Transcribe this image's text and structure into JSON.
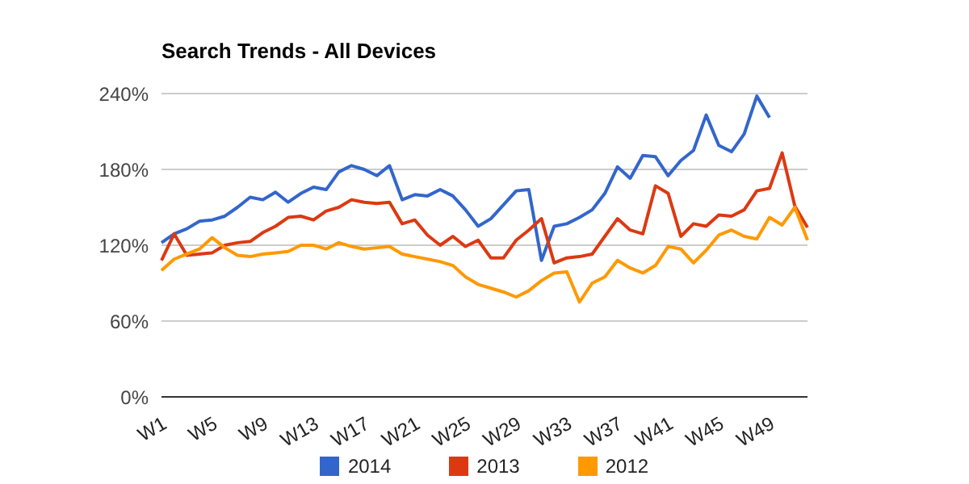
{
  "chart_data": {
    "type": "line",
    "title": "Search Trends - All Devices",
    "categories": [
      "W1",
      null,
      null,
      null,
      "W5",
      null,
      null,
      null,
      "W9",
      null,
      null,
      null,
      "W13",
      null,
      null,
      null,
      "W17",
      null,
      null,
      null,
      "W21",
      null,
      null,
      null,
      "W25",
      null,
      null,
      null,
      "W29",
      null,
      null,
      null,
      "W33",
      null,
      null,
      null,
      "W37",
      null,
      null,
      null,
      "W41",
      null,
      null,
      null,
      "W45",
      null,
      null,
      null,
      "W49",
      null,
      null,
      null
    ],
    "series": [
      {
        "name": "2014",
        "color": "#3366cc",
        "values": [
          122,
          129,
          133,
          139,
          140,
          143,
          150,
          158,
          156,
          162,
          154,
          161,
          166,
          164,
          178,
          183,
          180,
          175,
          183,
          156,
          160,
          159,
          164,
          159,
          148,
          135,
          141,
          152,
          163,
          164,
          108,
          135,
          137,
          142,
          148,
          161,
          182,
          173,
          191,
          190,
          175,
          187,
          195,
          223,
          199,
          194,
          208,
          238,
          221,
          null,
          null,
          null
        ]
      },
      {
        "name": "2013",
        "color": "#dc3912",
        "values": [
          108,
          129,
          112,
          113,
          114,
          120,
          122,
          123,
          130,
          135,
          142,
          143,
          140,
          147,
          150,
          156,
          154,
          153,
          154,
          137,
          140,
          128,
          120,
          127,
          119,
          124,
          110,
          110,
          124,
          132,
          141,
          106,
          110,
          111,
          113,
          127,
          141,
          132,
          129,
          167,
          161,
          127,
          137,
          135,
          144,
          143,
          148,
          163,
          165,
          193,
          151,
          134
        ]
      },
      {
        "name": "2012",
        "color": "#ff9900",
        "values": [
          100,
          109,
          113,
          117,
          126,
          118,
          112,
          111,
          113,
          114,
          115,
          120,
          120,
          117,
          122,
          119,
          117,
          118,
          119,
          113,
          111,
          109,
          107,
          104,
          95,
          89,
          86,
          83,
          79,
          84,
          92,
          98,
          99,
          75,
          90,
          95,
          108,
          102,
          98,
          104,
          119,
          117,
          106,
          116,
          128,
          132,
          127,
          125,
          142,
          136,
          150,
          124
        ]
      }
    ],
    "ylim": [
      0,
      240
    ],
    "yticks": [
      {
        "value": 0,
        "label": "0%"
      },
      {
        "value": 60,
        "label": "60%"
      },
      {
        "value": 120,
        "label": "120%"
      },
      {
        "value": 180,
        "label": "180%"
      },
      {
        "value": 240,
        "label": "240%"
      }
    ],
    "grid": "y",
    "legend": "bottom",
    "marker": "none",
    "line_style": "solid"
  }
}
